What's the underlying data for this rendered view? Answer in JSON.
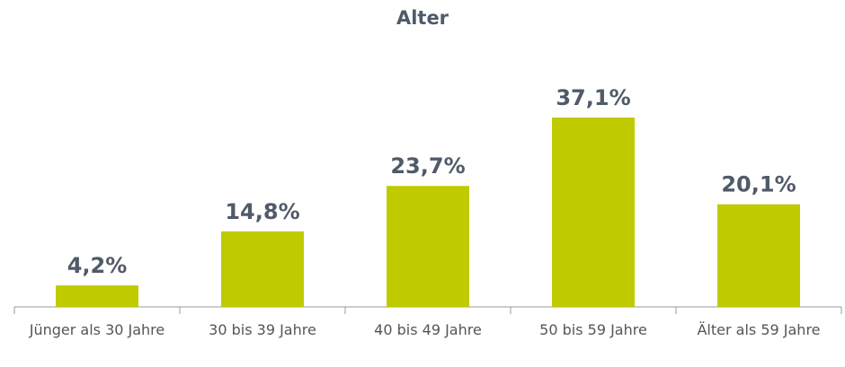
{
  "chart_data": {
    "type": "bar",
    "title": "Alter",
    "categories": [
      "Jünger als 30 Jahre",
      "30 bis 39 Jahre",
      "40 bis 49 Jahre",
      "50 bis 59 Jahre",
      "Älter als 59 Jahre"
    ],
    "values": [
      4.2,
      14.8,
      23.7,
      37.1,
      20.1
    ],
    "value_labels": [
      "4,2%",
      "14,8%",
      "23,7%",
      "37,1%",
      "20,1%"
    ],
    "color": "#bfcb00"
  }
}
